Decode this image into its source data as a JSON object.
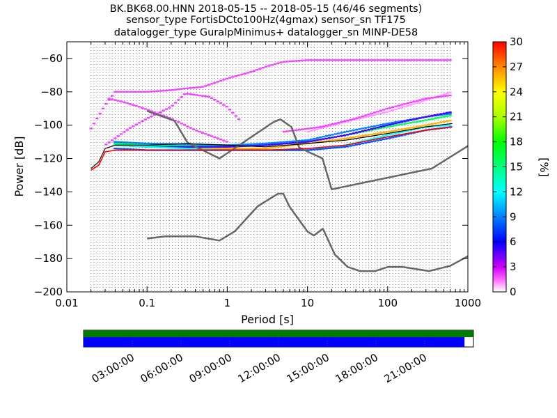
{
  "title_lines": [
    "BK.BK68.00.HNN   2018-05-15 -- 2018-05-15  (46/46 segments)",
    "sensor_type FortisDCto100Hz(4gmax) sensor_sn TF175",
    "datalogger_type GuralpMinimus+ datalogger_sn MINP-DE58"
  ],
  "colors": {
    "noise_model": "#666666",
    "mode_line": "#000000",
    "min_line": "#ff0000",
    "coverage_top": "#007a00",
    "coverage_bottom": "#0000ff"
  },
  "chart_data": {
    "type": "heatmap",
    "xlabel": "Period [s]",
    "ylabel": "Power [dB]",
    "x_scale": "log",
    "xlim": [
      0.01,
      1000
    ],
    "ylim": [
      -200,
      -50
    ],
    "x_ticks": [
      "0.01",
      "0.1",
      "1",
      "10",
      "100",
      "1000"
    ],
    "y_ticks": [
      "−60",
      "−80",
      "−100",
      "−120",
      "−140",
      "−160",
      "−180",
      "−200"
    ],
    "grid": "dotted vertical lines at each PSD frequency bin",
    "colorbar": {
      "label": "[%]",
      "range": [
        0,
        30
      ],
      "ticks": [
        "0",
        "3",
        "6",
        "9",
        "12",
        "15",
        "18",
        "21",
        "24",
        "27",
        "30"
      ]
    },
    "nhnm": {
      "name": "New High Noise Model",
      "period": [
        0.1,
        0.22,
        0.32,
        0.8,
        3.8,
        4.6,
        6.3,
        7.9,
        15.4,
        20,
        354.8,
        1000
      ],
      "power": [
        -91.5,
        -97.4,
        -110.5,
        -120.0,
        -98.0,
        -96.5,
        -101.0,
        -113.5,
        -120.0,
        -138.5,
        -126.0,
        -112.5
      ]
    },
    "nlnm": {
      "name": "New Low Noise Model",
      "period": [
        0.1,
        0.17,
        0.4,
        0.8,
        1.24,
        2.4,
        4.3,
        5.0,
        6.0,
        10.0,
        12.0,
        15.6,
        21.9,
        31.6,
        45.0,
        70.0,
        101.0,
        154.0,
        328.0,
        600.0,
        1000
      ],
      "power": [
        -168.0,
        -166.7,
        -166.7,
        -169.2,
        -163.7,
        -148.6,
        -141.1,
        -141.1,
        -149.0,
        -163.8,
        -166.2,
        -162.1,
        -177.5,
        -185.0,
        -187.5,
        -187.5,
        -185.0,
        -185.0,
        -187.5,
        -184.4,
        -178.6
      ]
    },
    "mode_curve": {
      "period": [
        0.02,
        0.025,
        0.03,
        0.04,
        0.1,
        0.3,
        1,
        3,
        10,
        30,
        100,
        300,
        640
      ],
      "power": [
        -126,
        -122,
        -114,
        -112,
        -112,
        -111,
        -112,
        -113,
        -111,
        -109,
        -105,
        -101,
        -99
      ]
    },
    "min_curve": {
      "period": [
        0.02,
        0.025,
        0.03,
        0.04,
        1,
        3,
        10,
        30,
        100,
        300,
        640
      ],
      "power": [
        -127,
        -124,
        -116,
        -115,
        -115,
        -115,
        -114,
        -112,
        -107,
        -103,
        -101
      ]
    },
    "psd_tracks": [
      {
        "period": [
          0.02,
          0.03,
          0.04,
          0.06,
          0.1,
          0.2,
          0.3,
          0.5,
          1,
          2,
          3,
          5,
          10,
          20,
          50,
          100,
          200,
          640
        ],
        "power": [
          -102,
          -88,
          -80,
          -80,
          -80,
          -79,
          -78,
          -77,
          -72,
          -68,
          -65,
          -62,
          -61,
          -61,
          -61,
          -61,
          -61,
          -61
        ],
        "percent": 2
      },
      {
        "period": [
          0.03,
          0.06,
          0.1,
          0.2,
          0.3,
          0.6,
          1,
          1.5
        ],
        "power": [
          -112,
          -102,
          -96,
          -89,
          -81,
          -83,
          -89,
          -98
        ],
        "percent": 2
      },
      {
        "period": [
          0.033,
          0.05,
          0.08,
          0.12,
          0.2,
          0.4,
          1
        ],
        "power": [
          -84,
          -86,
          -89,
          -92,
          -96,
          -103,
          -110
        ],
        "percent": 2
      },
      {
        "period": [
          0.04,
          0.1,
          1,
          3,
          10,
          30,
          100,
          300,
          640
        ],
        "power": [
          -110,
          -113,
          -114,
          -114,
          -111,
          -108,
          -104,
          -100,
          -97
        ],
        "percent": 26
      },
      {
        "period": [
          0.04,
          0.1,
          1,
          3,
          10,
          30,
          100,
          300,
          640
        ],
        "power": [
          -111,
          -112,
          -113,
          -112,
          -110,
          -106,
          -101,
          -97,
          -94
        ],
        "percent": 16
      },
      {
        "period": [
          0.04,
          0.1,
          1,
          3,
          10,
          30,
          100,
          300,
          640
        ],
        "power": [
          -110,
          -111,
          -112,
          -111,
          -109,
          -104,
          -99,
          -95,
          -93
        ],
        "percent": 9
      },
      {
        "period": [
          0.04,
          0.1,
          1,
          3,
          10,
          30,
          100,
          300,
          640
        ],
        "power": [
          -112,
          -113,
          -113,
          -112,
          -110,
          -106,
          -100,
          -95,
          -92
        ],
        "percent": 5
      },
      {
        "period": [
          10,
          30,
          100,
          300,
          640
        ],
        "power": [
          -104,
          -98,
          -92,
          -85,
          -80
        ],
        "percent": 1
      },
      {
        "period": [
          5,
          15,
          40,
          100,
          300,
          640
        ],
        "power": [
          -104,
          -101,
          -96,
          -90,
          -84,
          -82
        ],
        "percent": 2
      },
      {
        "period": [
          0.04,
          0.1,
          1,
          3,
          10,
          30,
          100,
          300,
          640
        ],
        "power": [
          -112,
          -113,
          -115,
          -115,
          -115,
          -112,
          -106,
          -101,
          -100
        ],
        "percent": 12
      },
      {
        "period": [
          0.04,
          0.1,
          1,
          3,
          10,
          30,
          100,
          300,
          640
        ],
        "power": [
          -114,
          -115,
          -115,
          -115,
          -115,
          -113,
          -108,
          -103,
          -101
        ],
        "percent": 8
      }
    ],
    "coverage": {
      "time_ticks": [
        "03:00:00",
        "06:00:00",
        "09:00:00",
        "12:00:00",
        "15:00:00",
        "18:00:00",
        "21:00:00"
      ],
      "data_fraction": 0.977
    }
  }
}
